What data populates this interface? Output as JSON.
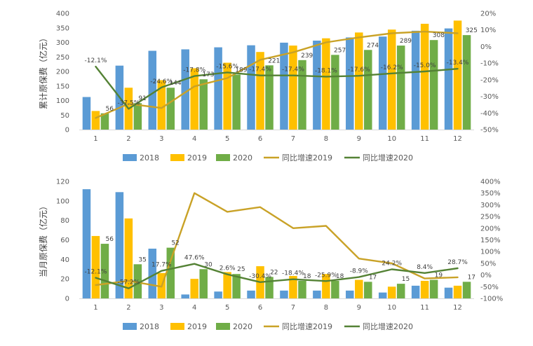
{
  "chart_data": [
    {
      "type": "bar",
      "months": [
        "1",
        "2",
        "3",
        "4",
        "5",
        "6",
        "7",
        "8",
        "9",
        "10",
        "11",
        "12"
      ],
      "ylabel": "累计原保费（亿元）",
      "ylim": [
        0,
        400
      ],
      "yticks": [
        "0",
        "50",
        "100",
        "150",
        "200",
        "250",
        "300",
        "350",
        "400"
      ],
      "y2lim": [
        -50,
        20
      ],
      "y2ticks": [
        "-50%",
        "-40%",
        "-30%",
        "-20%",
        "-10%",
        "0%",
        "10%",
        "20%"
      ],
      "series": [
        {
          "name": "2018",
          "color": "#5B9BD5",
          "values": [
            112,
            220,
            271,
            276,
            283,
            290,
            299,
            306,
            317,
            320,
            340,
            348
          ]
        },
        {
          "name": "2019",
          "color": "#FFC000",
          "values": [
            64,
            144,
            170,
            211,
            230,
            267,
            289,
            314,
            334,
            344,
            364,
            375
          ]
        },
        {
          "name": "2020",
          "color": "#70AD47",
          "values": [
            56,
            91,
            144,
            173,
            189,
            221,
            239,
            257,
            274,
            289,
            308,
            325
          ]
        }
      ],
      "data_labels_2020": [
        "56",
        "91",
        "144",
        "173",
        "189",
        "221",
        "239",
        "257",
        "274",
        "289",
        "308",
        "325"
      ],
      "lines": [
        {
          "name": "同比增速2019",
          "color": "#C9A227",
          "values": [
            -43.0,
            -34.5,
            -37.0,
            -24.0,
            -19.0,
            -8.0,
            -3.5,
            2.5,
            5.5,
            8.0,
            9.0,
            8.0
          ]
        },
        {
          "name": "同比增速2020",
          "color": "#548235",
          "values": [
            -12.1,
            -37.5,
            -24.6,
            -17.8,
            -15.6,
            -17.4,
            -17.4,
            -18.1,
            -17.6,
            -16.2,
            -15.0,
            -13.4
          ]
        }
      ],
      "line_labels_2020": [
        "-12.1%",
        "-37.5%",
        "-24.6%",
        "-17.8%",
        "-15.6%",
        "-17.4%",
        "-17.4%",
        "-18.1%",
        "-17.6%",
        "-16.2%",
        "-15.0%",
        "-13.4%"
      ]
    },
    {
      "type": "bar",
      "months": [
        "1",
        "2",
        "3",
        "4",
        "5",
        "6",
        "7",
        "8",
        "9",
        "10",
        "11",
        "12"
      ],
      "ylabel": "当月原保费（亿元）",
      "ylim": [
        0,
        120
      ],
      "yticks": [
        "0",
        "20",
        "40",
        "60",
        "80",
        "100",
        "120"
      ],
      "y2lim": [
        -100,
        400
      ],
      "y2ticks": [
        "-100%",
        "-50%",
        "0%",
        "50%",
        "100%",
        "150%",
        "200%",
        "250%",
        "300%",
        "350%",
        "400%"
      ],
      "series": [
        {
          "name": "2018",
          "color": "#5B9BD5",
          "values": [
            112,
            109,
            51,
            4,
            7,
            8,
            8,
            8,
            8,
            6,
            13,
            11
          ]
        },
        {
          "name": "2019",
          "color": "#FFC000",
          "values": [
            64,
            82,
            26,
            20,
            27,
            33,
            23,
            25,
            19,
            12,
            18,
            13
          ]
        },
        {
          "name": "2020",
          "color": "#70AD47",
          "values": [
            56,
            35,
            52,
            30,
            25,
            22,
            18,
            18,
            17,
            15,
            19,
            17
          ]
        }
      ],
      "data_labels_2020": [
        "56",
        "35",
        "52",
        "30",
        "25",
        "22",
        "18",
        "18",
        "17",
        "15",
        "19",
        "17"
      ],
      "lines": [
        {
          "name": "同比增速2019",
          "color": "#C9A227",
          "values": [
            -43,
            -25,
            -50,
            350,
            270,
            290,
            200,
            210,
            70,
            50,
            -15,
            -10
          ]
        },
        {
          "name": "同比增速2020",
          "color": "#548235",
          "values": [
            -12.1,
            -57.2,
            17.7,
            47.6,
            2.6,
            -30.4,
            -18.4,
            -25.9,
            -8.9,
            24.2,
            8.4,
            28.7
          ]
        }
      ],
      "line_labels_2020": [
        "-12.1%",
        "-57.2%",
        "17.7%",
        "47.6%",
        "2.6%",
        "-30.4%",
        "-18.4%",
        "-25.9%",
        "-8.9%",
        "24.2%",
        "8.4%",
        "28.7%"
      ]
    }
  ],
  "legend": [
    "2018",
    "2019",
    "2020",
    "同比增速2019",
    "同比增速2020"
  ]
}
